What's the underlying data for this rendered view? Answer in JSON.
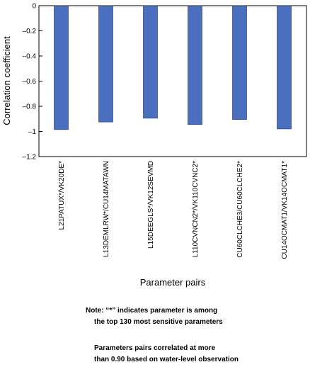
{
  "chart_data": {
    "type": "bar",
    "categories": [
      "L21PATUX*/VK20DE*",
      "L13DEMLRW*/CU14MATAWN",
      "L15DEEGLS*/VK12SEVMD",
      "L110CVNCN2*/VK110CVNC2*",
      "CU60CLCHE3/CU60CLCHE2*",
      "CU14OCMAT1/VK14OCMAT1*"
    ],
    "values": [
      -0.985,
      -0.925,
      -0.895,
      -0.945,
      -0.905,
      -0.98
    ],
    "ylim": [
      -1.2,
      0
    ],
    "yticks": [
      0,
      -0.2,
      -0.4,
      -0.6,
      -0.8,
      -1,
      -1.2
    ],
    "ytick_labels": [
      "0",
      "–0.2",
      "–0.4",
      "–0.6",
      "–0.8",
      "–1",
      "–1.2"
    ],
    "xlabel": "Parameter pairs",
    "ylabel": "Correlation coefficient",
    "title": "",
    "grid": false,
    "bar_color": "#4a6fbf"
  },
  "notes": {
    "line1": "Note: “*” indicates parameter is among",
    "line2": "the top 130 most sensitive parameters",
    "line3": "Parameters pairs correlated at more",
    "line4": "than 0.90 based on water-level observation"
  }
}
